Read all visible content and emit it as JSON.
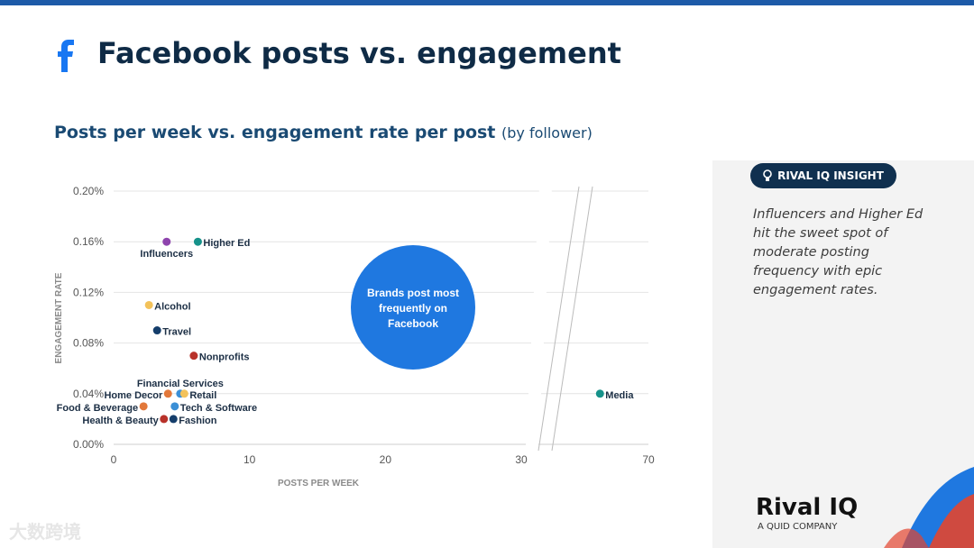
{
  "header": {
    "title": "Facebook posts vs. engagement",
    "subtitle": "Posts per week vs. engagement rate per post",
    "subtitle_note": "(by follower)"
  },
  "insight": {
    "badge": "RIVAL IQ INSIGHT",
    "text": "Influencers and Higher Ed hit the sweet spot of moderate posting frequency with epic engagement rates."
  },
  "brand": {
    "logo": "Rival IQ",
    "tagline": "A QUID COMPANY"
  },
  "watermark": "大数跨境",
  "colors": {
    "accent": "#1d5aa8",
    "bubble": "#1f78e0",
    "title": "#0f2b46"
  },
  "chart_data": {
    "type": "scatter",
    "xlabel": "POSTS PER WEEK",
    "ylabel": "ENGAGEMENT RATE",
    "x_ticks": [
      "0",
      "10",
      "20",
      "30",
      "70"
    ],
    "y_ticks": [
      "0.00%",
      "0.04%",
      "0.08%",
      "0.12%",
      "0.16%",
      "0.20%"
    ],
    "x_break": [
      30,
      70
    ],
    "ylim": [
      0,
      0.2
    ],
    "grid": true,
    "annotation": "Brands post most frequently on Facebook",
    "points": [
      {
        "label": "Influencers",
        "x": 3.9,
        "y": 0.16,
        "color": "#8e44ad"
      },
      {
        "label": "Higher Ed",
        "x": 6.2,
        "y": 0.16,
        "color": "#16928a"
      },
      {
        "label": "Alcohol",
        "x": 2.6,
        "y": 0.11,
        "color": "#f3c25a"
      },
      {
        "label": "Travel",
        "x": 3.2,
        "y": 0.09,
        "color": "#153e6b"
      },
      {
        "label": "Nonprofits",
        "x": 5.9,
        "y": 0.07,
        "color": "#b8322a"
      },
      {
        "label": "Financial Services",
        "x": 4.9,
        "y": 0.04,
        "color": "#3b8fd6"
      },
      {
        "label": "Home Decor",
        "x": 4.0,
        "y": 0.04,
        "color": "#e2783a"
      },
      {
        "label": "Retail",
        "x": 5.2,
        "y": 0.04,
        "color": "#f3c25a"
      },
      {
        "label": "Food & Beverage",
        "x": 2.2,
        "y": 0.03,
        "color": "#e2783a"
      },
      {
        "label": "Tech & Software",
        "x": 4.5,
        "y": 0.03,
        "color": "#3b8fd6"
      },
      {
        "label": "Health & Beauty",
        "x": 3.7,
        "y": 0.02,
        "color": "#b8322a"
      },
      {
        "label": "Fashion",
        "x": 4.4,
        "y": 0.02,
        "color": "#153e6b"
      },
      {
        "label": "Media",
        "x": 66,
        "y": 0.04,
        "color": "#16928a"
      }
    ]
  }
}
